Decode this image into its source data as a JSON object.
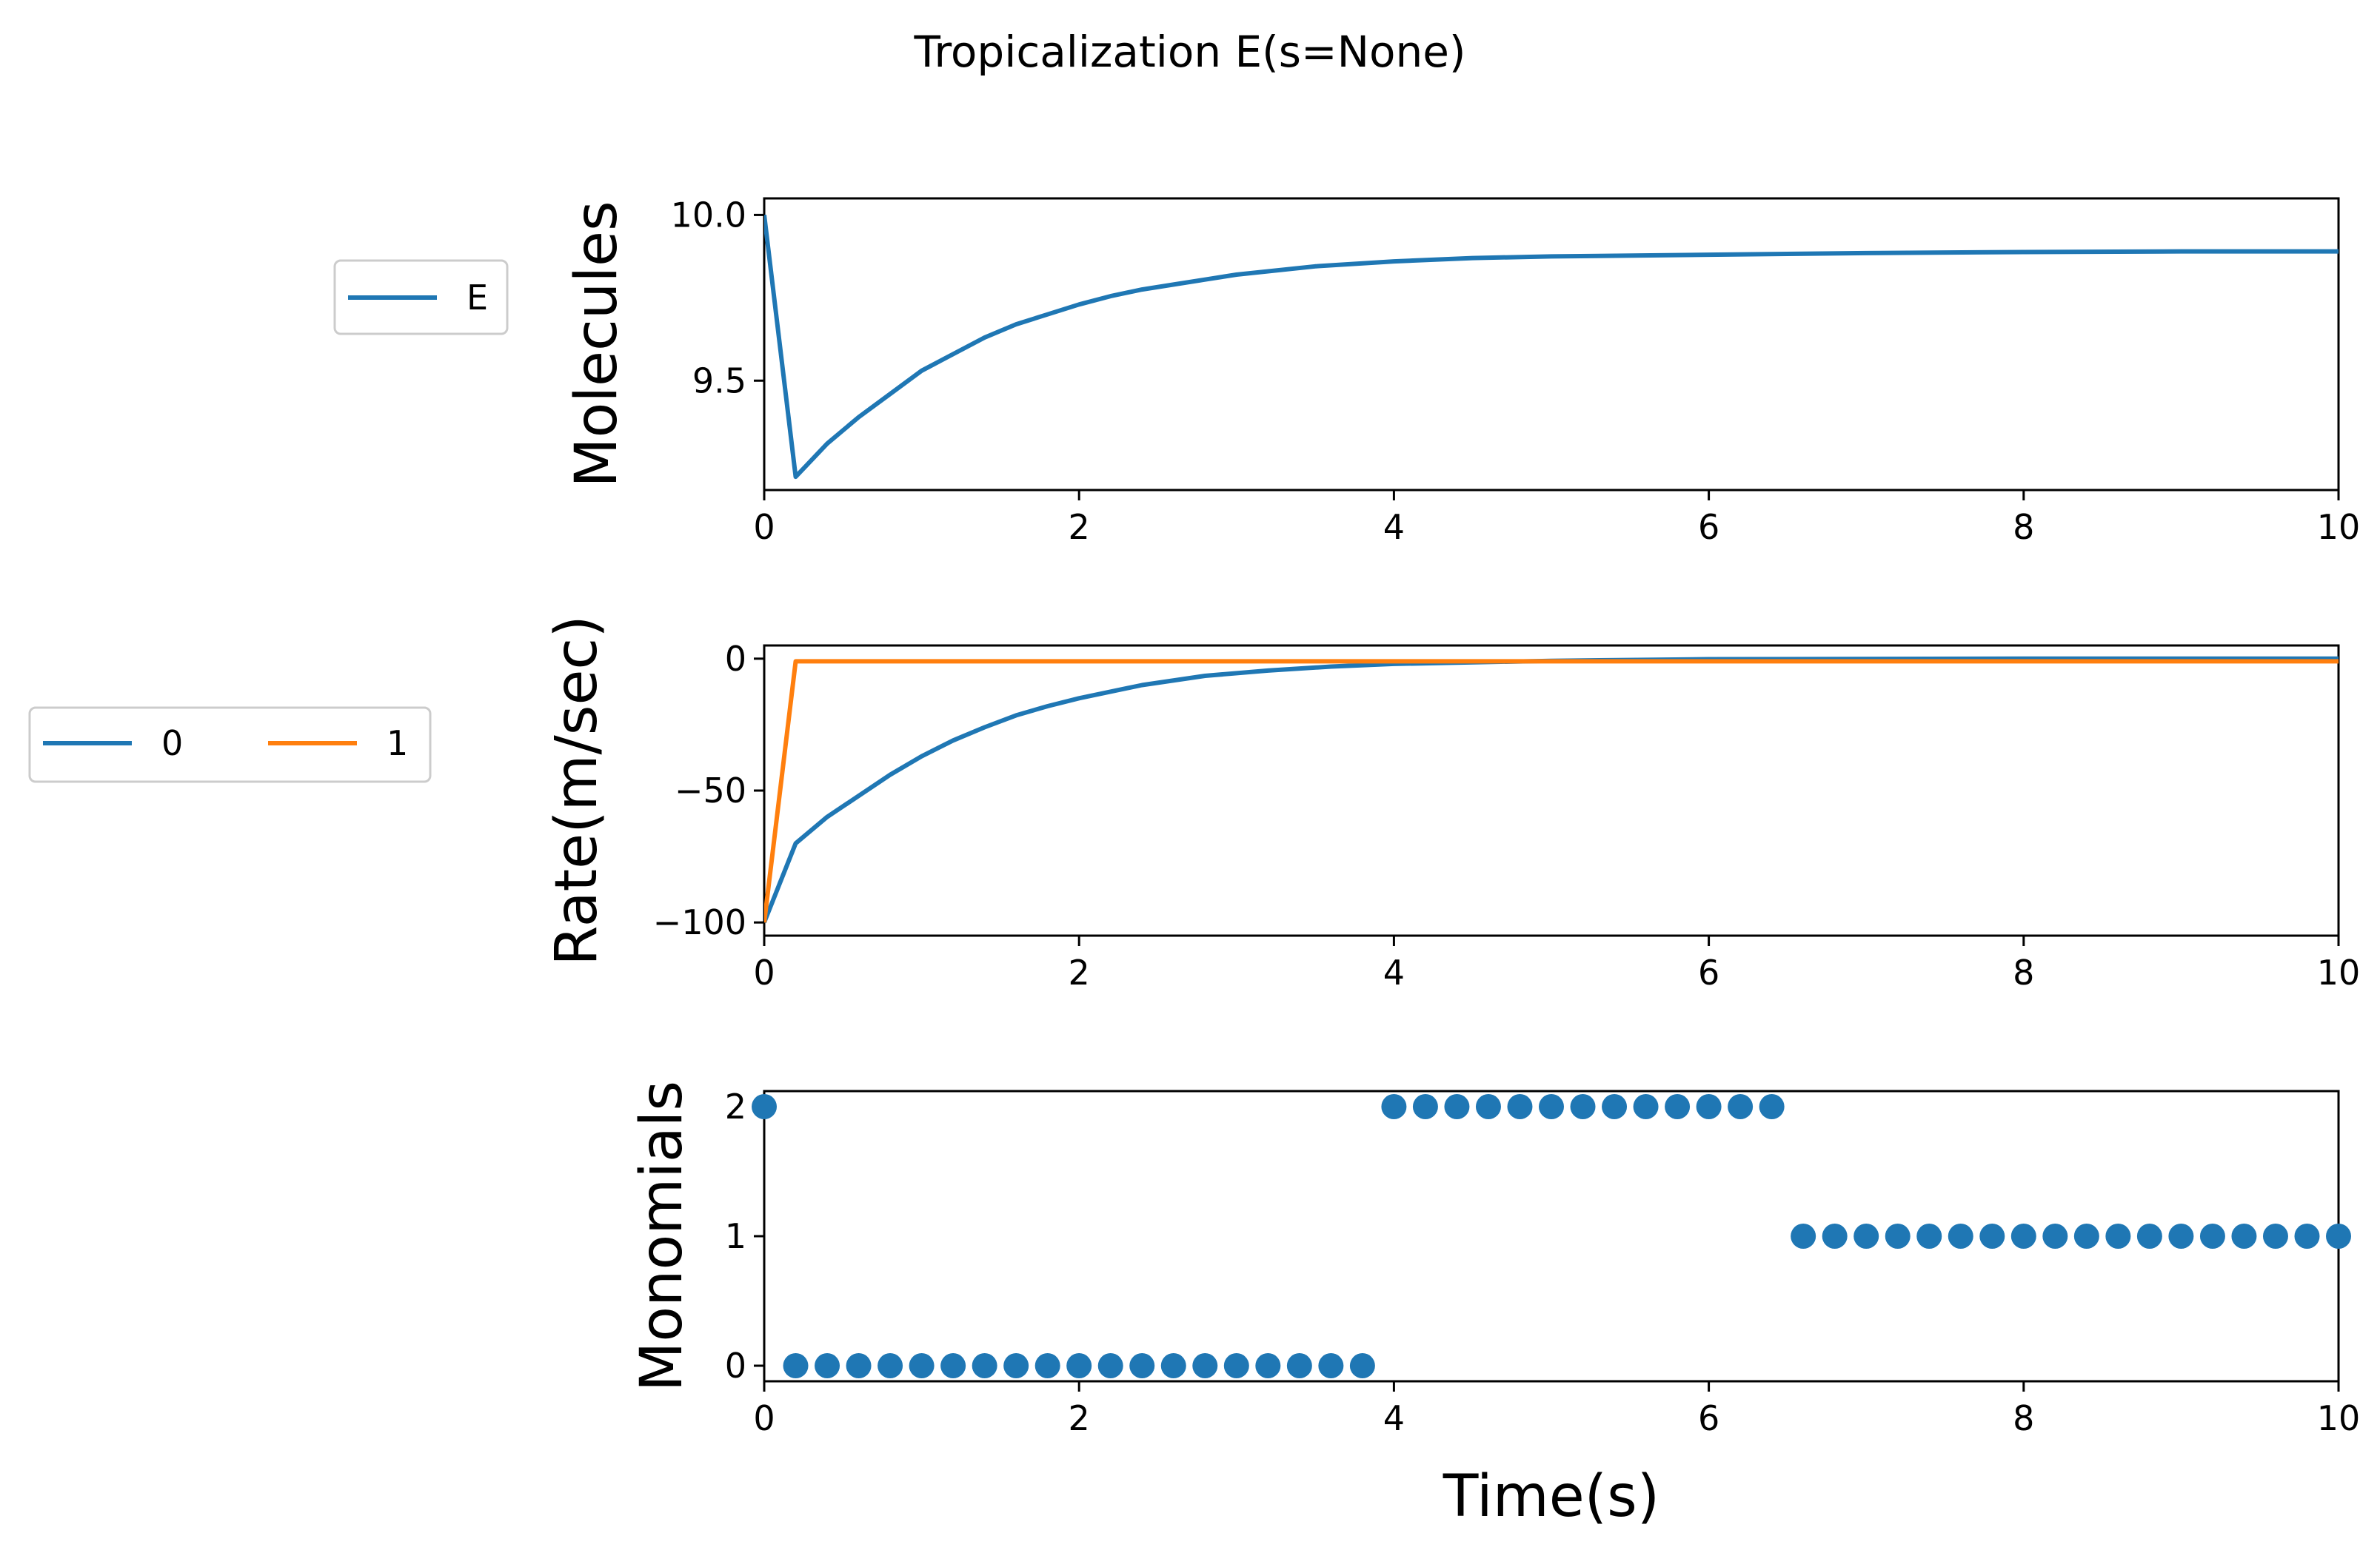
{
  "figure": {
    "title": "Tropicalization E(s=None)",
    "xlabel": "Time(s)"
  },
  "chart_data": [
    {
      "type": "line",
      "ylabel": "Molecules",
      "xlim": [
        0,
        10
      ],
      "ylim": [
        9.17,
        10.05
      ],
      "x_ticks": [
        "0",
        "2",
        "4",
        "6",
        "8",
        "10"
      ],
      "y_ticks": [
        {
          "value": 9.5,
          "label": "9.5"
        },
        {
          "value": 10.0,
          "label": "10.0"
        }
      ],
      "legend": {
        "entries": [
          "E"
        ]
      },
      "series": [
        {
          "name": "E",
          "color": "#1f77b4",
          "x": [
            0,
            0.2,
            0.4,
            0.6,
            0.8,
            1.0,
            1.2,
            1.4,
            1.6,
            1.8,
            2.0,
            2.2,
            2.4,
            2.6,
            2.8,
            3.0,
            3.5,
            4.0,
            4.5,
            5.0,
            6.0,
            7.0,
            8.0,
            9.0,
            10.0
          ],
          "y": [
            10.0,
            9.21,
            9.31,
            9.39,
            9.46,
            9.53,
            9.58,
            9.63,
            9.67,
            9.7,
            9.73,
            9.755,
            9.775,
            9.79,
            9.805,
            9.82,
            9.845,
            9.86,
            9.87,
            9.875,
            9.88,
            9.885,
            9.888,
            9.89,
            9.89
          ]
        }
      ]
    },
    {
      "type": "line",
      "ylabel": "Rate(m/sec)",
      "xlim": [
        0,
        10
      ],
      "ylim": [
        -105,
        5
      ],
      "x_ticks": [
        "0",
        "2",
        "4",
        "6",
        "8",
        "10"
      ],
      "y_ticks": [
        {
          "value": -100,
          "label": "−100"
        },
        {
          "value": -50,
          "label": "−50"
        },
        {
          "value": 0,
          "label": "0"
        }
      ],
      "legend": {
        "entries": [
          "0",
          "1"
        ]
      },
      "series": [
        {
          "name": "0",
          "color": "#1f77b4",
          "x": [
            0,
            0.2,
            0.4,
            0.6,
            0.8,
            1.0,
            1.2,
            1.4,
            1.6,
            1.8,
            2.0,
            2.4,
            2.8,
            3.2,
            3.6,
            4.0,
            5.0,
            6.0,
            8.0,
            10.0
          ],
          "y": [
            -100,
            -70,
            -60,
            -52,
            -44,
            -37,
            -31,
            -26,
            -21.5,
            -18,
            -15,
            -10,
            -6.5,
            -4.5,
            -3,
            -2,
            -0.8,
            -0.2,
            0,
            0
          ]
        },
        {
          "name": "1",
          "color": "#ff7f0e",
          "x": [
            0,
            0.2,
            10
          ],
          "y": [
            -100,
            -1,
            -1
          ]
        }
      ]
    },
    {
      "type": "scatter",
      "ylabel": "Monomials",
      "xlim": [
        0,
        10
      ],
      "ylim": [
        -0.12,
        2.12
      ],
      "x_ticks": [
        "0",
        "2",
        "4",
        "6",
        "8",
        "10"
      ],
      "y_ticks": [
        {
          "value": 0,
          "label": "0"
        },
        {
          "value": 1,
          "label": "1"
        },
        {
          "value": 2,
          "label": "2"
        }
      ],
      "series": [
        {
          "color": "#1f77b4",
          "x": [
            0,
            0.2,
            0.4,
            0.6,
            0.8,
            1.0,
            1.2,
            1.4,
            1.6,
            1.8,
            2.0,
            2.2,
            2.4,
            2.6,
            2.8,
            3.0,
            3.2,
            3.4,
            3.6,
            3.8,
            4.0,
            4.2,
            4.4,
            4.6,
            4.8,
            5.0,
            5.2,
            5.4,
            5.6,
            5.8,
            6.0,
            6.2,
            6.4,
            6.6,
            6.8,
            7.0,
            7.2,
            7.4,
            7.6,
            7.8,
            8.0,
            8.2,
            8.4,
            8.6,
            8.8,
            9.0,
            9.2,
            9.4,
            9.6,
            9.8,
            10.0
          ],
          "y": [
            2,
            0,
            0,
            0,
            0,
            0,
            0,
            0,
            0,
            0,
            0,
            0,
            0,
            0,
            0,
            0,
            0,
            0,
            0,
            0,
            2,
            2,
            2,
            2,
            2,
            2,
            2,
            2,
            2,
            2,
            2,
            2,
            2,
            1,
            1,
            1,
            1,
            1,
            1,
            1,
            1,
            1,
            1,
            1,
            1,
            1,
            1,
            1,
            1,
            1,
            1
          ]
        }
      ]
    }
  ]
}
